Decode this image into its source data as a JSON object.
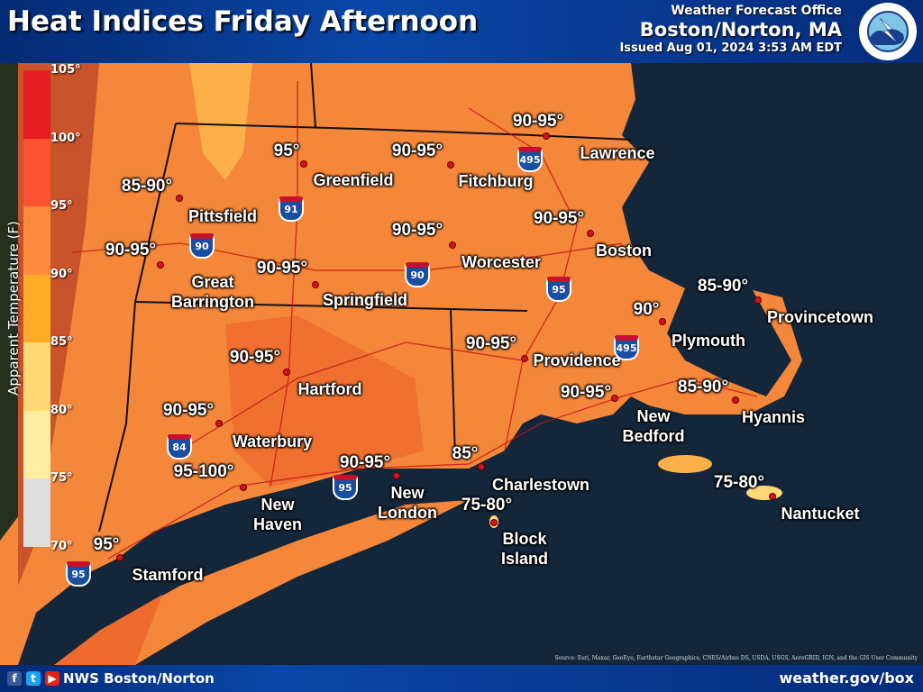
{
  "header": {
    "title": "Heat Indices Friday Afternoon",
    "office_line": "Weather Forecast Office",
    "office_name": "Boston/Norton, MA",
    "issued": "Issued Aug 01, 2024 3:53 AM EDT",
    "logo_text": "NATIONAL WEATHER SERVICE"
  },
  "legend": {
    "title": "Apparent Temperature (F)",
    "ticks": [
      "105°",
      "100°",
      "95°",
      "90°",
      "85°",
      "80°",
      "75°",
      "70°"
    ],
    "bands": [
      {
        "range": "100-105",
        "color": "#e41e20"
      },
      {
        "range": "95-100",
        "color": "#fb5230"
      },
      {
        "range": "90-95",
        "color": "#fd8a3c"
      },
      {
        "range": "85-90",
        "color": "#fdac28"
      },
      {
        "range": "80-85",
        "color": "#fed976"
      },
      {
        "range": "75-80",
        "color": "#ffeda0"
      },
      {
        "range": "70-75",
        "color": "#dddddd"
      }
    ]
  },
  "forecasts": [
    "95°",
    "90-95°",
    "90-95°",
    "85-90°",
    "90-95°",
    "90-95°",
    "90-95°",
    "90-95°",
    "90°",
    "85-90°",
    "90-95°",
    "90-95°",
    "90-95°",
    "85-90°",
    "90-95°",
    "95-100°",
    "90-95°",
    "85°",
    "75-80°",
    "75-80°",
    "95°"
  ],
  "cities": [
    "Greenfield",
    "Fitchburg",
    "Lawrence",
    "Pittsfield",
    "Boston",
    "Worcester",
    "Great\nBarrington",
    "Springfield",
    "Provincetown",
    "Plymouth",
    "Providence",
    "Hartford",
    "New\nBedford",
    "Hyannis",
    "Waterbury",
    "Charlestown",
    "New\nHaven",
    "New\nLondon",
    "Block\nIsland",
    "Nantucket",
    "Stamford"
  ],
  "interstates": [
    "495",
    "91",
    "90",
    "90",
    "95",
    "495",
    "84",
    "95",
    "95"
  ],
  "map": {
    "source": "Source: Esri, Maxar, GeoEye, Earthstar Geographics, CNES/Airbus DS, USDA, USGS, AeroGRID, IGN, and the GIS User Community"
  },
  "footer": {
    "handle": "NWS Boston/Norton",
    "website": "weather.gov/box",
    "social": [
      "facebook-icon",
      "twitter-icon",
      "youtube-icon"
    ]
  }
}
